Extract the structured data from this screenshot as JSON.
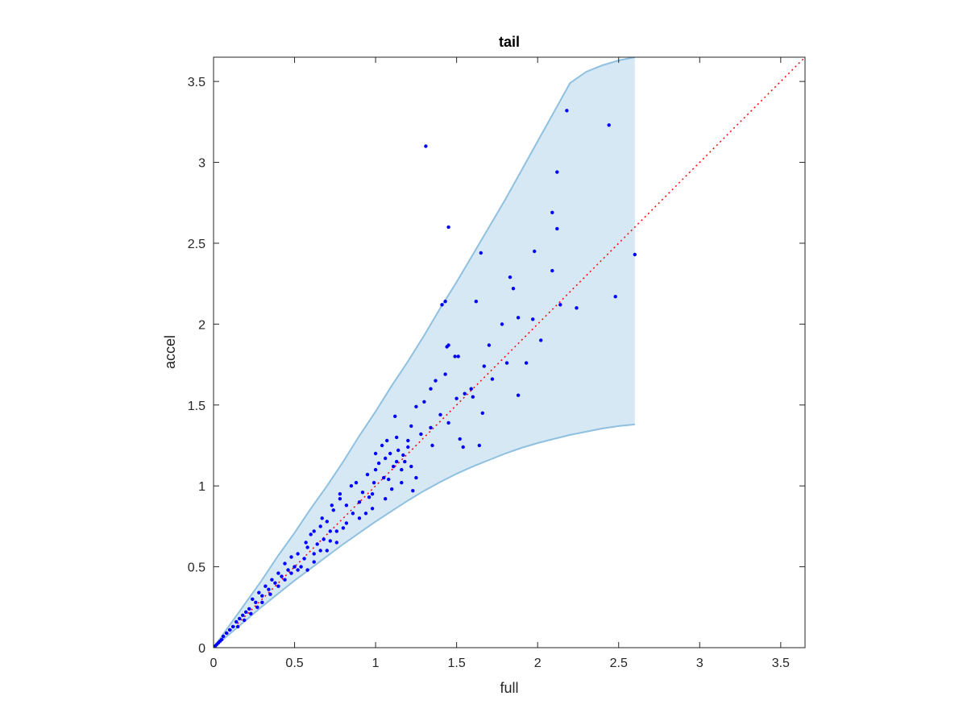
{
  "chart_data": {
    "type": "scatter",
    "title": "tail",
    "xlabel": "full",
    "ylabel": "accel",
    "xlim": [
      0,
      3.65
    ],
    "ylim": [
      0,
      3.65
    ],
    "xticks": [
      0,
      0.5,
      1,
      1.5,
      2,
      2.5,
      3,
      3.5
    ],
    "xtick_labels": [
      "0",
      "0.5",
      "1",
      "1.5",
      "2",
      "2.5",
      "3",
      "3.5"
    ],
    "yticks": [
      0,
      0.5,
      1,
      1.5,
      2,
      2.5,
      3,
      3.5
    ],
    "ytick_labels": [
      "0",
      "0.5",
      "1",
      "1.5",
      "2",
      "2.5",
      "3",
      "3.5"
    ],
    "grid": false,
    "colors": {
      "points": "#0000ff",
      "band_fill": "#d6e8f4",
      "band_edge": "#8fc0e0",
      "reference": "#ff0000",
      "axes": "#262626"
    },
    "reference_line": {
      "style": "dotted",
      "x": [
        0,
        3.65
      ],
      "y": [
        0,
        3.65
      ]
    },
    "band": {
      "x": [
        0,
        0.1,
        0.2,
        0.3,
        0.4,
        0.5,
        0.6,
        0.7,
        0.8,
        0.9,
        1.0,
        1.1,
        1.2,
        1.3,
        1.4,
        1.5,
        1.6,
        1.7,
        1.8,
        1.9,
        2.0,
        2.1,
        2.2,
        2.3,
        2.4,
        2.5,
        2.6
      ],
      "upper": [
        0,
        0.14,
        0.28,
        0.42,
        0.57,
        0.71,
        0.86,
        1.0,
        1.15,
        1.31,
        1.46,
        1.62,
        1.77,
        1.93,
        2.1,
        2.26,
        2.43,
        2.6,
        2.77,
        2.95,
        3.13,
        3.31,
        3.49,
        3.56,
        3.6,
        3.63,
        3.65
      ],
      "lower": [
        0,
        0.085,
        0.17,
        0.255,
        0.335,
        0.415,
        0.49,
        0.565,
        0.64,
        0.71,
        0.78,
        0.845,
        0.91,
        0.97,
        1.025,
        1.075,
        1.12,
        1.16,
        1.2,
        1.235,
        1.265,
        1.29,
        1.315,
        1.335,
        1.355,
        1.37,
        1.38
      ]
    },
    "points": [
      [
        1.31,
        3.1
      ],
      [
        2.18,
        3.32
      ],
      [
        2.44,
        3.23
      ],
      [
        2.12,
        2.94
      ],
      [
        1.45,
        2.6
      ],
      [
        1.65,
        2.44
      ],
      [
        2.09,
        2.69
      ],
      [
        2.12,
        2.59
      ],
      [
        1.98,
        2.45
      ],
      [
        2.09,
        2.33
      ],
      [
        2.6,
        2.43
      ],
      [
        2.48,
        2.17
      ],
      [
        2.24,
        2.1
      ],
      [
        1.41,
        2.12
      ],
      [
        1.43,
        2.14
      ],
      [
        1.62,
        2.14
      ],
      [
        1.83,
        2.29
      ],
      [
        1.85,
        2.22
      ],
      [
        2.14,
        2.12
      ],
      [
        1.44,
        1.86
      ],
      [
        1.45,
        1.87
      ],
      [
        1.49,
        1.8
      ],
      [
        1.51,
        1.8
      ],
      [
        1.7,
        1.87
      ],
      [
        1.78,
        2.0
      ],
      [
        1.88,
        2.04
      ],
      [
        2.02,
        1.9
      ],
      [
        1.93,
        1.76
      ],
      [
        1.88,
        1.56
      ],
      [
        1.81,
        1.76
      ],
      [
        1.64,
        1.25
      ],
      [
        1.54,
        1.24
      ],
      [
        1.72,
        1.66
      ],
      [
        1.67,
        1.74
      ],
      [
        1.97,
        2.03
      ],
      [
        1.59,
        1.6
      ],
      [
        1.6,
        1.55
      ],
      [
        1.66,
        1.45
      ],
      [
        1.34,
        1.6
      ],
      [
        1.37,
        1.65
      ],
      [
        1.43,
        1.69
      ],
      [
        1.12,
        1.43
      ],
      [
        1.22,
        1.37
      ],
      [
        1.28,
        1.32
      ],
      [
        1.25,
        1.49
      ],
      [
        1.13,
        1.3
      ],
      [
        1.2,
        1.28
      ],
      [
        1.34,
        1.36
      ],
      [
        1.35,
        1.25
      ],
      [
        1.45,
        1.39
      ],
      [
        1.52,
        1.29
      ],
      [
        1.4,
        1.44
      ],
      [
        1.5,
        1.54
      ],
      [
        1.55,
        1.57
      ],
      [
        1.3,
        1.52
      ],
      [
        1.04,
        1.25
      ],
      [
        1.06,
        1.17
      ],
      [
        1.09,
        1.2
      ],
      [
        1.18,
        1.15
      ],
      [
        1.14,
        1.22
      ],
      [
        1.0,
        1.1
      ],
      [
        0.99,
        1.02
      ],
      [
        1.05,
        1.05
      ],
      [
        1.16,
        1.02
      ],
      [
        1.22,
        1.12
      ],
      [
        1.25,
        1.05
      ],
      [
        1.23,
        0.97
      ],
      [
        1.06,
        0.92
      ],
      [
        0.98,
        0.95
      ],
      [
        1.1,
        0.98
      ],
      [
        1.0,
        1.2
      ],
      [
        1.2,
        1.24
      ],
      [
        1.16,
        1.1
      ],
      [
        1.08,
        1.04
      ],
      [
        1.11,
        1.12
      ],
      [
        0.85,
        1.0
      ],
      [
        0.88,
        1.02
      ],
      [
        0.92,
        0.96
      ],
      [
        0.95,
        1.07
      ],
      [
        0.9,
        0.9
      ],
      [
        0.82,
        0.88
      ],
      [
        0.86,
        0.83
      ],
      [
        0.94,
        0.83
      ],
      [
        0.98,
        0.86
      ],
      [
        0.78,
        0.92
      ],
      [
        0.74,
        0.85
      ],
      [
        0.7,
        0.78
      ],
      [
        0.72,
        0.72
      ],
      [
        0.8,
        0.74
      ],
      [
        0.76,
        0.65
      ],
      [
        0.68,
        0.67
      ],
      [
        0.66,
        0.75
      ],
      [
        0.64,
        0.64
      ],
      [
        0.6,
        0.7
      ],
      [
        0.62,
        0.58
      ],
      [
        0.7,
        0.6
      ],
      [
        0.58,
        0.62
      ],
      [
        0.56,
        0.55
      ],
      [
        0.52,
        0.58
      ],
      [
        0.5,
        0.5
      ],
      [
        0.48,
        0.56
      ],
      [
        0.46,
        0.48
      ],
      [
        0.54,
        0.5
      ],
      [
        0.58,
        0.48
      ],
      [
        0.62,
        0.53
      ],
      [
        0.44,
        0.52
      ],
      [
        0.42,
        0.44
      ],
      [
        0.4,
        0.46
      ],
      [
        0.38,
        0.4
      ],
      [
        0.36,
        0.42
      ],
      [
        0.34,
        0.36
      ],
      [
        0.32,
        0.38
      ],
      [
        0.3,
        0.32
      ],
      [
        0.28,
        0.34
      ],
      [
        0.26,
        0.28
      ],
      [
        0.24,
        0.3
      ],
      [
        0.22,
        0.24
      ],
      [
        0.2,
        0.22
      ],
      [
        0.18,
        0.2
      ],
      [
        0.16,
        0.18
      ],
      [
        0.14,
        0.16
      ],
      [
        0.12,
        0.13
      ],
      [
        0.1,
        0.11
      ],
      [
        0.08,
        0.09
      ],
      [
        0.06,
        0.07
      ],
      [
        0.05,
        0.05
      ],
      [
        0.04,
        0.04
      ],
      [
        0.03,
        0.03
      ],
      [
        0.02,
        0.02
      ],
      [
        0.01,
        0.01
      ],
      [
        0.4,
        0.38
      ],
      [
        0.44,
        0.42
      ],
      [
        0.48,
        0.46
      ],
      [
        0.52,
        0.48
      ],
      [
        0.35,
        0.33
      ],
      [
        0.3,
        0.28
      ],
      [
        0.27,
        0.25
      ],
      [
        0.23,
        0.21
      ],
      [
        0.19,
        0.17
      ],
      [
        0.15,
        0.13
      ],
      [
        0.66,
        0.6
      ],
      [
        0.72,
        0.66
      ],
      [
        0.76,
        0.72
      ],
      [
        0.82,
        0.77
      ],
      [
        0.9,
        0.8
      ],
      [
        0.57,
        0.65
      ],
      [
        0.62,
        0.72
      ],
      [
        0.67,
        0.8
      ],
      [
        0.73,
        0.88
      ],
      [
        0.78,
        0.95
      ],
      [
        1.02,
        1.14
      ],
      [
        1.07,
        1.28
      ],
      [
        1.13,
        1.15
      ],
      [
        1.17,
        1.19
      ],
      [
        0.96,
        0.93
      ]
    ]
  }
}
